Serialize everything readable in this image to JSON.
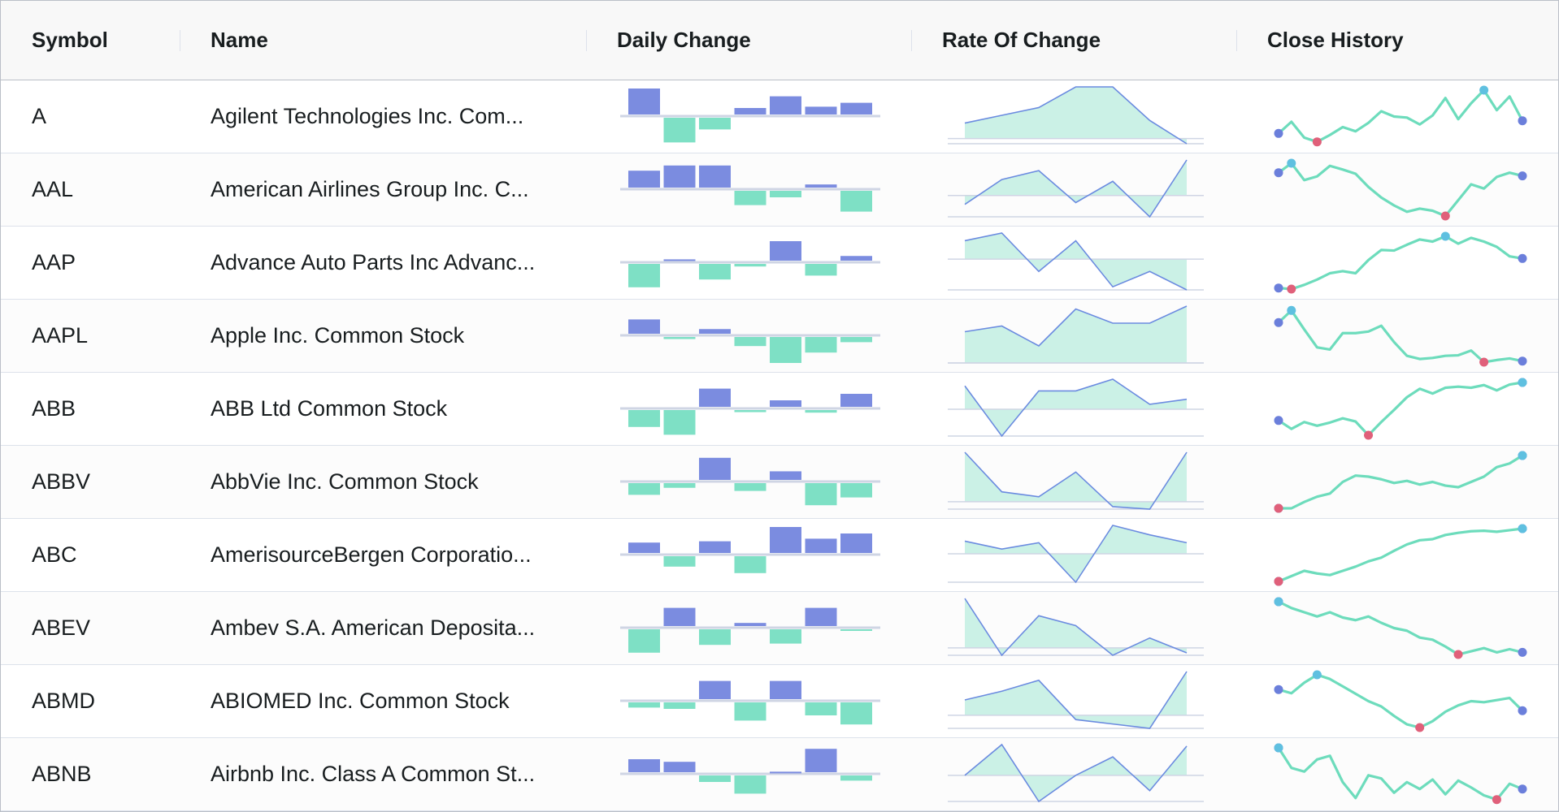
{
  "headers": {
    "symbol": "Symbol",
    "name": "Name",
    "daily_change": "Daily Change",
    "rate_of_change": "Rate Of Change",
    "close_history": "Close History"
  },
  "colors": {
    "bar_positive": "#7b8ce0",
    "bar_negative": "#7ee0c5",
    "area_fill": "#cbf1e6",
    "area_line": "#6b8be0",
    "history_line": "#6ddcbc",
    "marker_first_last": "#6b7fdb",
    "marker_high": "#5fc0e0",
    "marker_low": "#e0607a",
    "baseline": "#cfd5e4"
  },
  "rows": [
    {
      "symbol": "A",
      "name": "Agilent Technologies Inc. Com...",
      "daily": [
        1.0,
        -0.95,
        -0.45,
        0.25,
        0.7,
        0.3,
        0.45
      ],
      "roc": [
        0.3,
        0.45,
        0.6,
        1.0,
        1.0,
        0.35,
        -0.1
      ],
      "history": [
        0.18,
        0.4,
        0.1,
        0.02,
        0.15,
        0.3,
        0.22,
        0.38,
        0.6,
        0.5,
        0.48,
        0.35,
        0.52,
        0.85,
        0.45,
        0.75,
        1.0,
        0.62,
        0.88,
        0.42
      ]
    },
    {
      "symbol": "AAL",
      "name": "American Airlines Group Inc. C...",
      "daily": [
        0.65,
        0.85,
        0.85,
        -0.55,
        -0.25,
        0.12,
        -0.8
      ],
      "roc": [
        -0.25,
        0.45,
        0.7,
        -0.2,
        0.4,
        -0.6,
        1.0
      ],
      "history": [
        0.82,
        1.0,
        0.68,
        0.75,
        0.95,
        0.88,
        0.8,
        0.55,
        0.35,
        0.2,
        0.08,
        0.14,
        0.1,
        0.0,
        0.3,
        0.6,
        0.52,
        0.74,
        0.82,
        0.76
      ]
    },
    {
      "symbol": "AAP",
      "name": "Advance Auto Parts Inc Advanc...",
      "daily": [
        -0.9,
        0.05,
        -0.6,
        -0.1,
        0.75,
        -0.45,
        0.18
      ],
      "roc": [
        0.6,
        0.85,
        -0.4,
        0.6,
        -0.9,
        -0.4,
        -1.0
      ],
      "history": [
        0.02,
        0.0,
        0.08,
        0.18,
        0.3,
        0.34,
        0.3,
        0.55,
        0.74,
        0.73,
        0.84,
        0.94,
        0.9,
        1.0,
        0.86,
        0.97,
        0.9,
        0.8,
        0.62,
        0.58
      ]
    },
    {
      "symbol": "AAPL",
      "name": "Apple Inc. Common Stock",
      "daily": [
        0.55,
        -0.08,
        0.18,
        -0.35,
        -1.0,
        -0.6,
        -0.2
      ],
      "roc": [
        0.55,
        0.65,
        0.3,
        0.95,
        0.7,
        0.7,
        1.0
      ],
      "history": [
        0.75,
        0.98,
        0.62,
        0.28,
        0.24,
        0.55,
        0.55,
        0.58,
        0.69,
        0.38,
        0.12,
        0.06,
        0.08,
        0.12,
        0.13,
        0.22,
        0.0,
        0.04,
        0.07,
        0.02
      ]
    },
    {
      "symbol": "ABB",
      "name": "ABB Ltd Common Stock",
      "daily": [
        -0.65,
        -0.95,
        0.7,
        -0.08,
        0.25,
        -0.1,
        0.5
      ],
      "roc": [
        0.7,
        -0.8,
        0.55,
        0.55,
        0.9,
        0.15,
        0.3
      ],
      "history": [
        0.28,
        0.12,
        0.25,
        0.18,
        0.24,
        0.32,
        0.26,
        0.0,
        0.25,
        0.48,
        0.72,
        0.88,
        0.79,
        0.9,
        0.92,
        0.9,
        0.95,
        0.85,
        0.96,
        1.0
      ]
    },
    {
      "symbol": "ABBV",
      "name": "AbbVie Inc. Common Stock",
      "daily": [
        -0.45,
        -0.18,
        0.85,
        -0.3,
        0.33,
        -0.85,
        -0.55
      ],
      "roc": [
        1.0,
        0.2,
        0.1,
        0.6,
        -0.1,
        -0.15,
        1.0
      ],
      "history": [
        0.0,
        0.0,
        0.12,
        0.22,
        0.28,
        0.5,
        0.62,
        0.6,
        0.55,
        0.48,
        0.52,
        0.45,
        0.5,
        0.43,
        0.4,
        0.5,
        0.6,
        0.78,
        0.85,
        1.0
      ]
    },
    {
      "symbol": "ABC",
      "name": "AmerisourceBergen Corporatio...",
      "daily": [
        0.4,
        -0.4,
        0.45,
        -0.65,
        1.0,
        0.55,
        0.75
      ],
      "roc": [
        0.4,
        0.15,
        0.35,
        -0.9,
        0.9,
        0.6,
        0.35
      ],
      "history": [
        0.0,
        0.1,
        0.2,
        0.15,
        0.12,
        0.2,
        0.28,
        0.38,
        0.45,
        0.58,
        0.7,
        0.78,
        0.8,
        0.88,
        0.92,
        0.95,
        0.96,
        0.94,
        0.97,
        1.0
      ]
    },
    {
      "symbol": "ABEV",
      "name": "Ambev S.A. American Deposita...",
      "daily": [
        -0.9,
        0.7,
        -0.6,
        0.12,
        -0.55,
        0.7,
        -0.05
      ],
      "roc": [
        1.0,
        -0.15,
        0.65,
        0.45,
        -0.15,
        0.2,
        -0.1
      ],
      "history": [
        1.0,
        0.88,
        0.8,
        0.72,
        0.8,
        0.7,
        0.65,
        0.72,
        0.6,
        0.5,
        0.45,
        0.32,
        0.28,
        0.15,
        0.0,
        0.06,
        0.12,
        0.04,
        0.1,
        0.04
      ]
    },
    {
      "symbol": "ABMD",
      "name": "ABIOMED Inc. Common Stock",
      "daily": [
        -0.2,
        -0.25,
        0.7,
        -0.7,
        0.7,
        -0.5,
        -0.85
      ],
      "roc": [
        0.35,
        0.55,
        0.8,
        -0.1,
        -0.2,
        -0.3,
        1.0
      ],
      "history": [
        0.72,
        0.65,
        0.85,
        1.0,
        0.92,
        0.78,
        0.64,
        0.5,
        0.4,
        0.22,
        0.06,
        0.0,
        0.12,
        0.3,
        0.42,
        0.5,
        0.48,
        0.52,
        0.56,
        0.32
      ]
    },
    {
      "symbol": "ABNB",
      "name": "Airbnb Inc. Class A Common St...",
      "daily": [
        0.5,
        0.4,
        -0.25,
        -0.7,
        0.02,
        0.9,
        -0.2
      ],
      "roc": [
        0.0,
        1.0,
        -0.85,
        0.0,
        0.6,
        -0.5,
        0.95
      ],
      "history": [
        1.0,
        0.62,
        0.55,
        0.78,
        0.85,
        0.35,
        0.05,
        0.48,
        0.42,
        0.15,
        0.35,
        0.22,
        0.4,
        0.12,
        0.38,
        0.25,
        0.1,
        0.02,
        0.32,
        0.22
      ]
    }
  ]
}
